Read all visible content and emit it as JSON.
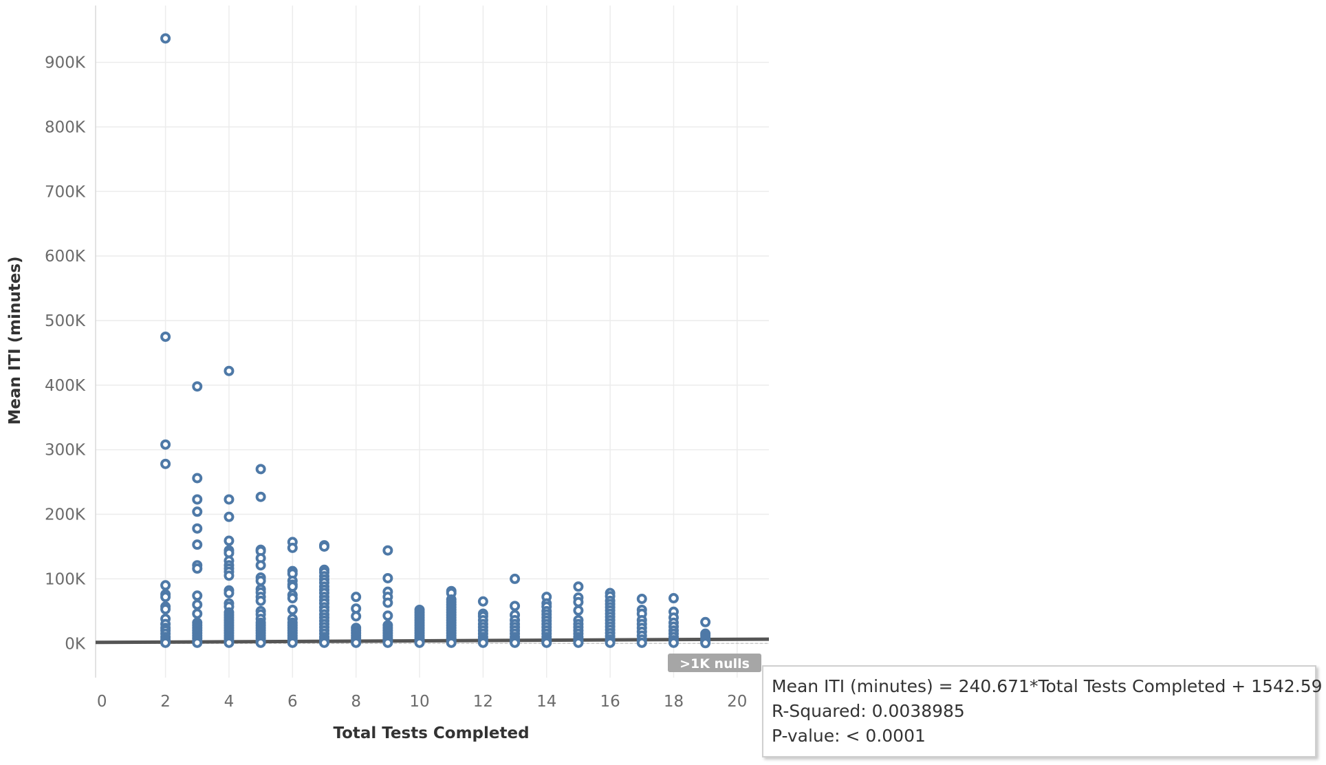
{
  "chart_data": {
    "type": "scatter",
    "xlabel": "Total Tests Completed",
    "ylabel": "Mean ITI (minutes)",
    "xlim": [
      -0.2,
      21.0
    ],
    "ylim": [
      -53000,
      988000
    ],
    "x_ticks": [
      0,
      2,
      4,
      6,
      8,
      10,
      12,
      14,
      16,
      18,
      20
    ],
    "x_tick_labels": [
      "0",
      "2",
      "4",
      "6",
      "8",
      "10",
      "12",
      "14",
      "16",
      "18",
      "20"
    ],
    "y_ticks": [
      0,
      100000,
      200000,
      300000,
      400000,
      500000,
      600000,
      700000,
      800000,
      900000
    ],
    "y_tick_labels": [
      "0K",
      "100K",
      "200K",
      "300K",
      "400K",
      "500K",
      "600K",
      "700K",
      "800K",
      "900K"
    ],
    "grid": true,
    "marker": "open-circle",
    "colors": {
      "points": "#4e79a7",
      "trend_line": "#555555",
      "null_badge": "#a6a6a6"
    },
    "trend_line": {
      "slope": 240.671,
      "intercept": 1542.59,
      "x_range": [
        0,
        21.0
      ]
    },
    "null_indicator": ">1K nulls",
    "tooltip_lines": [
      "Mean ITI (minutes) = 240.671*Total Tests Completed + 1542.59",
      "R-Squared: 0.0038985",
      "P-value: < 0.0001"
    ],
    "series": [
      {
        "points": [
          [
            2,
            937000
          ],
          [
            2,
            475000
          ],
          [
            2,
            308000
          ],
          [
            2,
            278000
          ],
          [
            2,
            90000
          ],
          [
            2,
            76000
          ],
          [
            2,
            72000
          ],
          [
            2,
            57000
          ],
          [
            2,
            53000
          ],
          [
            2,
            38000
          ],
          [
            2,
            30000
          ],
          [
            2,
            24000
          ],
          [
            2,
            20000
          ],
          [
            2,
            15000
          ],
          [
            2,
            10000
          ],
          [
            2,
            6000
          ],
          [
            2,
            3000
          ],
          [
            2,
            1000
          ],
          [
            3,
            398000
          ],
          [
            3,
            256000
          ],
          [
            3,
            223000
          ],
          [
            3,
            204000
          ],
          [
            3,
            178000
          ],
          [
            3,
            153000
          ],
          [
            3,
            121000
          ],
          [
            3,
            116000
          ],
          [
            3,
            74000
          ],
          [
            3,
            60000
          ],
          [
            3,
            46000
          ],
          [
            3,
            32000
          ],
          [
            3,
            28000
          ],
          [
            3,
            24000
          ],
          [
            3,
            20000
          ],
          [
            3,
            16000
          ],
          [
            3,
            12000
          ],
          [
            3,
            8000
          ],
          [
            3,
            4000
          ],
          [
            3,
            1000
          ],
          [
            4,
            422000
          ],
          [
            4,
            223000
          ],
          [
            4,
            196000
          ],
          [
            4,
            159000
          ],
          [
            4,
            144000
          ],
          [
            4,
            140000
          ],
          [
            4,
            128000
          ],
          [
            4,
            121000
          ],
          [
            4,
            116000
          ],
          [
            4,
            111000
          ],
          [
            4,
            105000
          ],
          [
            4,
            82000
          ],
          [
            4,
            78000
          ],
          [
            4,
            62000
          ],
          [
            4,
            57000
          ],
          [
            4,
            48000
          ],
          [
            4,
            44000
          ],
          [
            4,
            40000
          ],
          [
            4,
            36000
          ],
          [
            4,
            32000
          ],
          [
            4,
            28000
          ],
          [
            4,
            24000
          ],
          [
            4,
            20000
          ],
          [
            4,
            16000
          ],
          [
            4,
            12000
          ],
          [
            4,
            8000
          ],
          [
            4,
            4000
          ],
          [
            4,
            1000
          ],
          [
            5,
            270000
          ],
          [
            5,
            227000
          ],
          [
            5,
            145000
          ],
          [
            5,
            143000
          ],
          [
            5,
            132000
          ],
          [
            5,
            121000
          ],
          [
            5,
            102000
          ],
          [
            5,
            97000
          ],
          [
            5,
            84000
          ],
          [
            5,
            79000
          ],
          [
            5,
            72000
          ],
          [
            5,
            66000
          ],
          [
            5,
            50000
          ],
          [
            5,
            45000
          ],
          [
            5,
            38000
          ],
          [
            5,
            32000
          ],
          [
            5,
            28000
          ],
          [
            5,
            24000
          ],
          [
            5,
            20000
          ],
          [
            5,
            16000
          ],
          [
            5,
            12000
          ],
          [
            5,
            8000
          ],
          [
            5,
            4000
          ],
          [
            5,
            1000
          ],
          [
            6,
            157000
          ],
          [
            6,
            148000
          ],
          [
            6,
            112000
          ],
          [
            6,
            108000
          ],
          [
            6,
            97000
          ],
          [
            6,
            91000
          ],
          [
            6,
            88000
          ],
          [
            6,
            75000
          ],
          [
            6,
            70000
          ],
          [
            6,
            52000
          ],
          [
            6,
            38000
          ],
          [
            6,
            32000
          ],
          [
            6,
            28000
          ],
          [
            6,
            24000
          ],
          [
            6,
            20000
          ],
          [
            6,
            16000
          ],
          [
            6,
            12000
          ],
          [
            6,
            8000
          ],
          [
            6,
            4000
          ],
          [
            6,
            1000
          ],
          [
            7,
            152000
          ],
          [
            7,
            150000
          ],
          [
            7,
            114000
          ],
          [
            7,
            110000
          ],
          [
            7,
            104000
          ],
          [
            7,
            99000
          ],
          [
            7,
            94000
          ],
          [
            7,
            88000
          ],
          [
            7,
            83000
          ],
          [
            7,
            78000
          ],
          [
            7,
            72000
          ],
          [
            7,
            67000
          ],
          [
            7,
            62000
          ],
          [
            7,
            56000
          ],
          [
            7,
            51000
          ],
          [
            7,
            45000
          ],
          [
            7,
            40000
          ],
          [
            7,
            35000
          ],
          [
            7,
            30000
          ],
          [
            7,
            25000
          ],
          [
            7,
            20000
          ],
          [
            7,
            15000
          ],
          [
            7,
            10000
          ],
          [
            7,
            6000
          ],
          [
            7,
            3000
          ],
          [
            7,
            1000
          ],
          [
            8,
            72000
          ],
          [
            8,
            54000
          ],
          [
            8,
            42000
          ],
          [
            8,
            24000
          ],
          [
            8,
            20000
          ],
          [
            8,
            16000
          ],
          [
            8,
            12000
          ],
          [
            8,
            8000
          ],
          [
            8,
            4000
          ],
          [
            8,
            1000
          ],
          [
            9,
            144000
          ],
          [
            9,
            101000
          ],
          [
            9,
            80000
          ],
          [
            9,
            72000
          ],
          [
            9,
            63000
          ],
          [
            9,
            43000
          ],
          [
            9,
            28000
          ],
          [
            9,
            24000
          ],
          [
            9,
            20000
          ],
          [
            9,
            16000
          ],
          [
            9,
            12000
          ],
          [
            9,
            8000
          ],
          [
            9,
            4000
          ],
          [
            9,
            1000
          ],
          [
            10,
            52000
          ],
          [
            10,
            48000
          ],
          [
            10,
            44000
          ],
          [
            10,
            40000
          ],
          [
            10,
            36000
          ],
          [
            10,
            32000
          ],
          [
            10,
            28000
          ],
          [
            10,
            24000
          ],
          [
            10,
            20000
          ],
          [
            10,
            16000
          ],
          [
            10,
            12000
          ],
          [
            10,
            8000
          ],
          [
            10,
            4000
          ],
          [
            10,
            1000
          ],
          [
            11,
            81000
          ],
          [
            11,
            78000
          ],
          [
            11,
            68000
          ],
          [
            11,
            64000
          ],
          [
            11,
            60000
          ],
          [
            11,
            56000
          ],
          [
            11,
            52000
          ],
          [
            11,
            48000
          ],
          [
            11,
            44000
          ],
          [
            11,
            40000
          ],
          [
            11,
            36000
          ],
          [
            11,
            32000
          ],
          [
            11,
            28000
          ],
          [
            11,
            24000
          ],
          [
            11,
            20000
          ],
          [
            11,
            16000
          ],
          [
            11,
            12000
          ],
          [
            11,
            8000
          ],
          [
            11,
            4000
          ],
          [
            11,
            1000
          ],
          [
            12,
            65000
          ],
          [
            12,
            46000
          ],
          [
            12,
            42000
          ],
          [
            12,
            36000
          ],
          [
            12,
            30000
          ],
          [
            12,
            25000
          ],
          [
            12,
            20000
          ],
          [
            12,
            15000
          ],
          [
            12,
            10000
          ],
          [
            12,
            6000
          ],
          [
            12,
            3000
          ],
          [
            12,
            1000
          ],
          [
            13,
            100000
          ],
          [
            13,
            58000
          ],
          [
            13,
            44000
          ],
          [
            13,
            36000
          ],
          [
            13,
            30000
          ],
          [
            13,
            25000
          ],
          [
            13,
            20000
          ],
          [
            13,
            15000
          ],
          [
            13,
            10000
          ],
          [
            13,
            6000
          ],
          [
            13,
            3000
          ],
          [
            13,
            1000
          ],
          [
            14,
            72000
          ],
          [
            14,
            62000
          ],
          [
            14,
            57000
          ],
          [
            14,
            50000
          ],
          [
            14,
            45000
          ],
          [
            14,
            40000
          ],
          [
            14,
            35000
          ],
          [
            14,
            30000
          ],
          [
            14,
            25000
          ],
          [
            14,
            20000
          ],
          [
            14,
            15000
          ],
          [
            14,
            10000
          ],
          [
            14,
            6000
          ],
          [
            14,
            3000
          ],
          [
            14,
            1000
          ],
          [
            15,
            88000
          ],
          [
            15,
            71000
          ],
          [
            15,
            64000
          ],
          [
            15,
            51000
          ],
          [
            15,
            36000
          ],
          [
            15,
            30000
          ],
          [
            15,
            25000
          ],
          [
            15,
            20000
          ],
          [
            15,
            15000
          ],
          [
            15,
            10000
          ],
          [
            15,
            6000
          ],
          [
            15,
            3000
          ],
          [
            15,
            1000
          ],
          [
            16,
            78000
          ],
          [
            16,
            73000
          ],
          [
            16,
            66000
          ],
          [
            16,
            61000
          ],
          [
            16,
            56000
          ],
          [
            16,
            51000
          ],
          [
            16,
            46000
          ],
          [
            16,
            41000
          ],
          [
            16,
            36000
          ],
          [
            16,
            31000
          ],
          [
            16,
            26000
          ],
          [
            16,
            21000
          ],
          [
            16,
            16000
          ],
          [
            16,
            11000
          ],
          [
            16,
            6000
          ],
          [
            16,
            3000
          ],
          [
            16,
            1000
          ],
          [
            17,
            69000
          ],
          [
            17,
            52000
          ],
          [
            17,
            46000
          ],
          [
            17,
            36000
          ],
          [
            17,
            30000
          ],
          [
            17,
            24000
          ],
          [
            17,
            18000
          ],
          [
            17,
            12000
          ],
          [
            17,
            6000
          ],
          [
            17,
            1000
          ],
          [
            18,
            70000
          ],
          [
            18,
            49000
          ],
          [
            18,
            40000
          ],
          [
            18,
            32000
          ],
          [
            18,
            26000
          ],
          [
            18,
            20000
          ],
          [
            18,
            15000
          ],
          [
            18,
            10000
          ],
          [
            18,
            5000
          ],
          [
            18,
            1000
          ],
          [
            19,
            33000
          ],
          [
            19,
            15000
          ],
          [
            19,
            12000
          ],
          [
            19,
            8000
          ],
          [
            19,
            5000
          ],
          [
            19,
            2000
          ],
          [
            19,
            500
          ]
        ]
      }
    ]
  }
}
